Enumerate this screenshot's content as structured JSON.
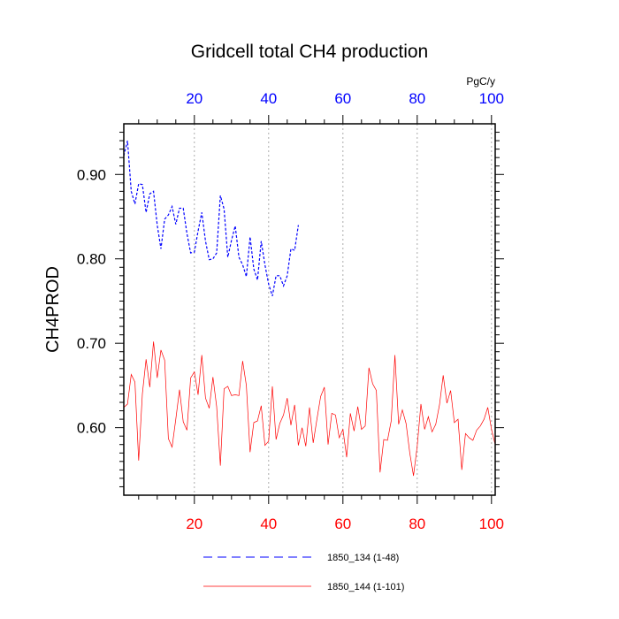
{
  "chart_data": {
    "type": "line",
    "title": "Gridcell total CH4 production",
    "ylabel": "CH4PROD",
    "units_label": "PgC/y",
    "xlim": [
      1,
      101
    ],
    "ylim": [
      0.52,
      0.96
    ],
    "y_ticks": [
      0.6,
      0.7,
      0.8,
      0.9
    ],
    "y_tick_labels": [
      "0.60",
      "0.70",
      "0.80",
      "0.90"
    ],
    "x_ticks_bottom": [
      20,
      40,
      60,
      80,
      100
    ],
    "x_ticks_top": [
      20,
      40,
      60,
      80,
      100
    ],
    "bottom_axis_color": "#ff0000",
    "top_axis_color": "#0000ff",
    "grid": "vertical-dotted",
    "legend_position": "bottom",
    "series": [
      {
        "name": "1850_134 (1-48)",
        "color": "#0000ff",
        "dash": "dashed",
        "x_start": 1,
        "values": [
          0.922,
          0.94,
          0.88,
          0.865,
          0.889,
          0.888,
          0.855,
          0.877,
          0.88,
          0.84,
          0.812,
          0.847,
          0.852,
          0.862,
          0.841,
          0.86,
          0.86,
          0.83,
          0.807,
          0.808,
          0.833,
          0.855,
          0.821,
          0.799,
          0.8,
          0.807,
          0.875,
          0.859,
          0.802,
          0.822,
          0.839,
          0.802,
          0.793,
          0.779,
          0.826,
          0.788,
          0.775,
          0.821,
          0.793,
          0.77,
          0.756,
          0.78,
          0.78,
          0.768,
          0.78,
          0.812,
          0.81,
          0.84
        ]
      },
      {
        "name": "1850_144 (1-101)",
        "color": "#ff0000",
        "dash": "solid",
        "x_start": 1,
        "values": [
          0.624,
          0.628,
          0.663,
          0.654,
          0.561,
          0.64,
          0.681,
          0.648,
          0.702,
          0.659,
          0.692,
          0.68,
          0.587,
          0.577,
          0.61,
          0.645,
          0.607,
          0.597,
          0.659,
          0.666,
          0.639,
          0.686,
          0.635,
          0.623,
          0.66,
          0.625,
          0.555,
          0.646,
          0.649,
          0.638,
          0.639,
          0.638,
          0.679,
          0.65,
          0.571,
          0.606,
          0.608,
          0.626,
          0.579,
          0.584,
          0.649,
          0.586,
          0.605,
          0.615,
          0.635,
          0.603,
          0.627,
          0.579,
          0.6,
          0.578,
          0.624,
          0.582,
          0.61,
          0.637,
          0.648,
          0.58,
          0.617,
          0.615,
          0.588,
          0.598,
          0.565,
          0.617,
          0.596,
          0.625,
          0.598,
          0.602,
          0.671,
          0.652,
          0.644,
          0.547,
          0.586,
          0.585,
          0.608,
          0.686,
          0.604,
          0.621,
          0.605,
          0.57,
          0.543,
          0.578,
          0.628,
          0.598,
          0.613,
          0.595,
          0.604,
          0.627,
          0.662,
          0.629,
          0.644,
          0.606,
          0.61,
          0.55,
          0.593,
          0.588,
          0.585,
          0.597,
          0.602,
          0.61,
          0.624,
          0.598,
          0.58
        ]
      }
    ]
  }
}
